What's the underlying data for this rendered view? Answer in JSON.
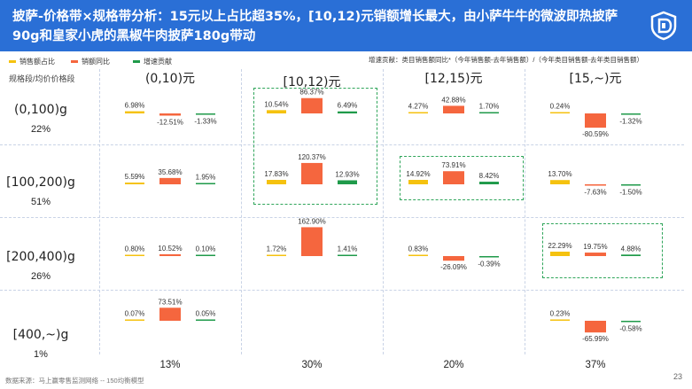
{
  "title": "披萨-价格带×规格带分析：15元以上占比超35%，[10,12)元销额增长最大，由小萨牛牛的微波即热披萨90g和皇家小虎的黑椒牛肉披萨180g带动",
  "legend": [
    {
      "label": "销售额占比",
      "color": "#f5c20f"
    },
    {
      "label": "销额同比",
      "color": "#f5663e"
    },
    {
      "label": "增速贡献",
      "color": "#1f9a4a"
    }
  ],
  "note": "增速贡献：类目销售额同比*（今年销售额-去年销售额）/（今年类目销售额-去年类目销售额）",
  "corner_label": "规格段/均价价格段",
  "footer": "数据来源：马上赢零售监测网络 -- 150均衡模型",
  "page_number": "23",
  "colors": {
    "header": "#2a6fd6",
    "share": "#f5c20f",
    "yoy": "#f5663e",
    "contrib": "#1f9a4a",
    "highlight": "#2fa55a"
  },
  "chart_data": {
    "type": "bar",
    "columns": [
      {
        "label": "(0,10)元",
        "share": "13%"
      },
      {
        "label": "[10,12)元",
        "share": "30%"
      },
      {
        "label": "[12,15)元",
        "share": "20%"
      },
      {
        "label": "[15,~)元",
        "share": "37%"
      }
    ],
    "rows": [
      {
        "label": "(0,100)g",
        "share": "22%"
      },
      {
        "label": "[100,200)g",
        "share": "51%"
      },
      {
        "label": "[200,400)g",
        "share": "26%"
      },
      {
        "label": "[400,~)g",
        "share": "1%"
      }
    ],
    "series": [
      "销售额占比",
      "销额同比",
      "增速贡献"
    ],
    "cells": [
      [
        {
          "share": 6.98,
          "yoy": -12.51,
          "contrib": -1.33
        },
        {
          "share": 10.54,
          "yoy": 86.37,
          "contrib": 6.49
        },
        {
          "share": 4.27,
          "yoy": 42.88,
          "contrib": 1.7
        },
        {
          "share": 0.24,
          "yoy": -80.59,
          "contrib": -1.32
        }
      ],
      [
        {
          "share": 5.59,
          "yoy": 35.68,
          "contrib": 1.95
        },
        {
          "share": 17.83,
          "yoy": 120.37,
          "contrib": 12.93
        },
        {
          "share": 14.92,
          "yoy": 73.91,
          "contrib": 8.42
        },
        {
          "share": 13.7,
          "yoy": -7.63,
          "contrib": -1.5
        }
      ],
      [
        {
          "share": 0.8,
          "yoy": 10.52,
          "contrib": 0.1
        },
        {
          "share": 1.72,
          "yoy": 162.9,
          "contrib": 1.41
        },
        {
          "share": 0.83,
          "yoy": -26.09,
          "contrib": -0.39
        },
        {
          "share": 22.29,
          "yoy": 19.75,
          "contrib": 4.88
        }
      ],
      [
        {
          "share": 0.07,
          "yoy": 73.51,
          "contrib": 0.05
        },
        null,
        null,
        {
          "share": 0.23,
          "yoy": -65.99,
          "contrib": -0.58
        }
      ]
    ],
    "highlighted_cells": [
      [
        0,
        1
      ],
      [
        1,
        1
      ],
      [
        1,
        2
      ],
      [
        2,
        3
      ]
    ]
  }
}
